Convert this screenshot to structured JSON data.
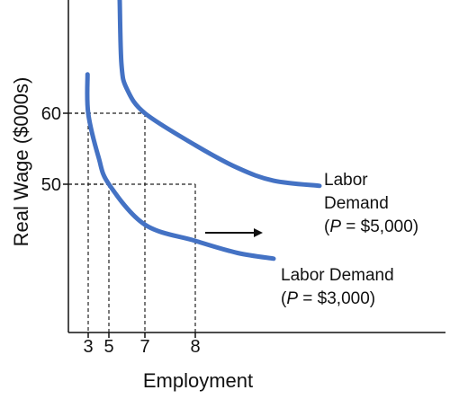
{
  "chart_data": {
    "type": "line",
    "title": "",
    "xlabel": "Employment",
    "ylabel": "Real Wage ($000s)",
    "x_ticks": [
      "3",
      "5",
      "7",
      "8"
    ],
    "y_ticks": [
      "60",
      "50"
    ],
    "grid": false,
    "series": [
      {
        "name_lines": [
          "Labor Demand",
          "(P = $3,000)"
        ],
        "color": "#4472C4",
        "points": [
          {
            "x": 2.9,
            "y": 68
          },
          {
            "x": 3,
            "y": 60
          },
          {
            "x": 4,
            "y": 53.8
          },
          {
            "x": 5,
            "y": 50
          },
          {
            "x": 7,
            "y": 45
          },
          {
            "x": 8,
            "y": 43
          },
          {
            "x": 10,
            "y": 41.5
          },
          {
            "x": 12,
            "y": 40.8
          }
        ]
      },
      {
        "name_lines": [
          "Labor",
          "Demand",
          "(P = $5,000)"
        ],
        "color": "#4472C4",
        "points": [
          {
            "x": 5.6,
            "y": 84
          },
          {
            "x": 5.7,
            "y": 70
          },
          {
            "x": 6,
            "y": 65
          },
          {
            "x": 7,
            "y": 60
          },
          {
            "x": 8,
            "y": 55.5
          },
          {
            "x": 10,
            "y": 52.3
          },
          {
            "x": 12,
            "y": 50.5
          },
          {
            "x": 14,
            "y": 49.8
          }
        ]
      }
    ],
    "reference_lines": [
      {
        "x": 3,
        "y": 60
      },
      {
        "x": 7,
        "y": 60
      },
      {
        "x": 5,
        "y": 50
      },
      {
        "x": 8,
        "y": 50
      }
    ],
    "annotation": {
      "type": "arrow",
      "direction": "right"
    }
  }
}
